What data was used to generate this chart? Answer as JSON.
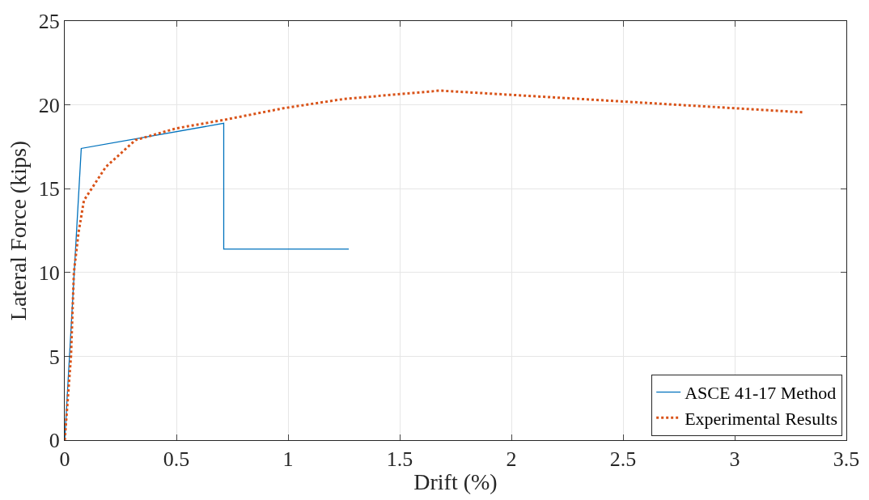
{
  "chart_data": {
    "type": "line",
    "xlabel": "Drift (%)",
    "ylabel": "Lateral Force (kips)",
    "xlim": [
      0,
      3.5
    ],
    "xticks": [
      0,
      0.5,
      1,
      1.5,
      2,
      2.5,
      3,
      3.5
    ],
    "ylim": [
      0,
      25
    ],
    "yticks": [
      0,
      5,
      10,
      15,
      20,
      25
    ],
    "grid": true,
    "legend": "bottom right",
    "series": [
      {
        "name": "ASCE 41-17 Method",
        "color": "#0072bd",
        "line_style": "solid",
        "x": [
          0,
          0.074,
          0.712,
          0.712,
          1.272
        ],
        "values": [
          0,
          17.4,
          18.9,
          11.4,
          11.4
        ]
      },
      {
        "name": "Experimental Results",
        "color": "#d95319",
        "line_style": "dotted",
        "x": [
          0,
          0.028,
          0.041,
          0.062,
          0.086,
          0.184,
          0.317,
          0.5,
          0.712,
          0.98,
          1.25,
          1.68,
          2.5,
          3.31
        ],
        "values": [
          0,
          5.0,
          10.0,
          12.4,
          14.3,
          16.3,
          17.9,
          18.6,
          19.1,
          19.8,
          20.35,
          20.85,
          20.2,
          19.55
        ]
      }
    ]
  }
}
